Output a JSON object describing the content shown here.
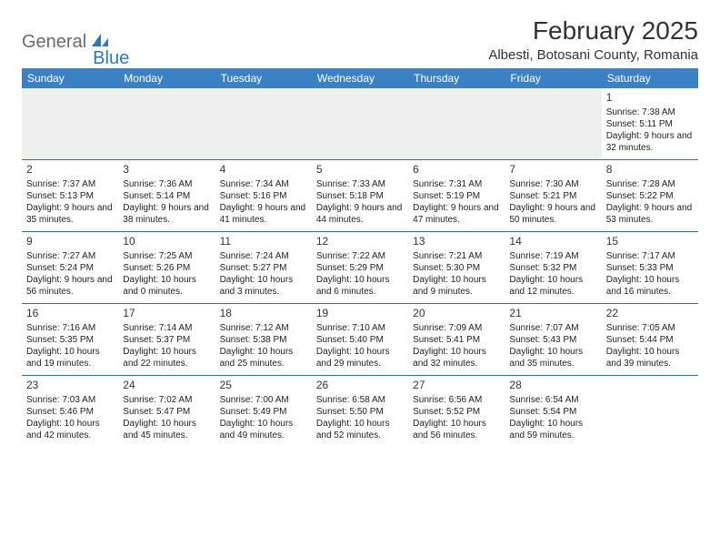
{
  "logo": {
    "text1": "General",
    "text2": "Blue"
  },
  "title": "February 2025",
  "location": "Albesti, Botosani County, Romania",
  "colors": {
    "header_bg": "#3a80c4",
    "header_text": "#ffffff",
    "rule": "#3a6a9a",
    "blank_bg": "#efefef",
    "logo_gray": "#6a6a6a",
    "logo_blue": "#2f78b7"
  },
  "weekdays": [
    "Sunday",
    "Monday",
    "Tuesday",
    "Wednesday",
    "Thursday",
    "Friday",
    "Saturday"
  ],
  "weeks": [
    [
      null,
      null,
      null,
      null,
      null,
      null,
      {
        "n": "1",
        "sr": "7:38 AM",
        "ss": "5:11 PM",
        "dl": "9 hours and 32 minutes."
      }
    ],
    [
      {
        "n": "2",
        "sr": "7:37 AM",
        "ss": "5:13 PM",
        "dl": "9 hours and 35 minutes."
      },
      {
        "n": "3",
        "sr": "7:36 AM",
        "ss": "5:14 PM",
        "dl": "9 hours and 38 minutes."
      },
      {
        "n": "4",
        "sr": "7:34 AM",
        "ss": "5:16 PM",
        "dl": "9 hours and 41 minutes."
      },
      {
        "n": "5",
        "sr": "7:33 AM",
        "ss": "5:18 PM",
        "dl": "9 hours and 44 minutes."
      },
      {
        "n": "6",
        "sr": "7:31 AM",
        "ss": "5:19 PM",
        "dl": "9 hours and 47 minutes."
      },
      {
        "n": "7",
        "sr": "7:30 AM",
        "ss": "5:21 PM",
        "dl": "9 hours and 50 minutes."
      },
      {
        "n": "8",
        "sr": "7:28 AM",
        "ss": "5:22 PM",
        "dl": "9 hours and 53 minutes."
      }
    ],
    [
      {
        "n": "9",
        "sr": "7:27 AM",
        "ss": "5:24 PM",
        "dl": "9 hours and 56 minutes."
      },
      {
        "n": "10",
        "sr": "7:25 AM",
        "ss": "5:26 PM",
        "dl": "10 hours and 0 minutes."
      },
      {
        "n": "11",
        "sr": "7:24 AM",
        "ss": "5:27 PM",
        "dl": "10 hours and 3 minutes."
      },
      {
        "n": "12",
        "sr": "7:22 AM",
        "ss": "5:29 PM",
        "dl": "10 hours and 6 minutes."
      },
      {
        "n": "13",
        "sr": "7:21 AM",
        "ss": "5:30 PM",
        "dl": "10 hours and 9 minutes."
      },
      {
        "n": "14",
        "sr": "7:19 AM",
        "ss": "5:32 PM",
        "dl": "10 hours and 12 minutes."
      },
      {
        "n": "15",
        "sr": "7:17 AM",
        "ss": "5:33 PM",
        "dl": "10 hours and 16 minutes."
      }
    ],
    [
      {
        "n": "16",
        "sr": "7:16 AM",
        "ss": "5:35 PM",
        "dl": "10 hours and 19 minutes."
      },
      {
        "n": "17",
        "sr": "7:14 AM",
        "ss": "5:37 PM",
        "dl": "10 hours and 22 minutes."
      },
      {
        "n": "18",
        "sr": "7:12 AM",
        "ss": "5:38 PM",
        "dl": "10 hours and 25 minutes."
      },
      {
        "n": "19",
        "sr": "7:10 AM",
        "ss": "5:40 PM",
        "dl": "10 hours and 29 minutes."
      },
      {
        "n": "20",
        "sr": "7:09 AM",
        "ss": "5:41 PM",
        "dl": "10 hours and 32 minutes."
      },
      {
        "n": "21",
        "sr": "7:07 AM",
        "ss": "5:43 PM",
        "dl": "10 hours and 35 minutes."
      },
      {
        "n": "22",
        "sr": "7:05 AM",
        "ss": "5:44 PM",
        "dl": "10 hours and 39 minutes."
      }
    ],
    [
      {
        "n": "23",
        "sr": "7:03 AM",
        "ss": "5:46 PM",
        "dl": "10 hours and 42 minutes."
      },
      {
        "n": "24",
        "sr": "7:02 AM",
        "ss": "5:47 PM",
        "dl": "10 hours and 45 minutes."
      },
      {
        "n": "25",
        "sr": "7:00 AM",
        "ss": "5:49 PM",
        "dl": "10 hours and 49 minutes."
      },
      {
        "n": "26",
        "sr": "6:58 AM",
        "ss": "5:50 PM",
        "dl": "10 hours and 52 minutes."
      },
      {
        "n": "27",
        "sr": "6:56 AM",
        "ss": "5:52 PM",
        "dl": "10 hours and 56 minutes."
      },
      {
        "n": "28",
        "sr": "6:54 AM",
        "ss": "5:54 PM",
        "dl": "10 hours and 59 minutes."
      },
      null
    ]
  ],
  "labels": {
    "sunrise": "Sunrise:",
    "sunset": "Sunset:",
    "daylight": "Daylight:"
  }
}
